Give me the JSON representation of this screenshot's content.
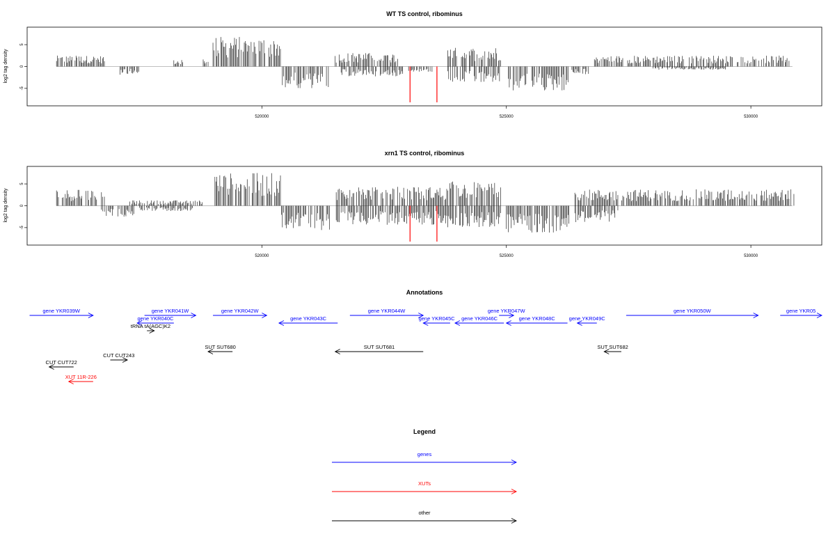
{
  "chart_data": [
    {
      "type": "bar",
      "title": "WT TS control, ribominus",
      "ylabel": "log2 tag density",
      "xlim": [
        515200,
        531450
      ],
      "ylim": [
        -9,
        9
      ],
      "x_ticks": [
        520000,
        525000,
        530000
      ],
      "y_ticks": [
        5,
        0,
        -5
      ],
      "segments": [
        {
          "x0": 515800,
          "x1": 516800,
          "sign": 1,
          "amp": 2.0
        },
        {
          "x0": 517100,
          "x1": 517500,
          "sign": -1,
          "amp": 1.5
        },
        {
          "x0": 518200,
          "x1": 518400,
          "sign": 1,
          "amp": 1.2
        },
        {
          "x0": 518800,
          "x1": 519000,
          "sign": 1,
          "amp": 1.5
        },
        {
          "x0": 519000,
          "x1": 520400,
          "sign": 1,
          "amp": 5.5
        },
        {
          "x0": 520400,
          "x1": 521400,
          "sign": -1,
          "amp": 4.0
        },
        {
          "x0": 521500,
          "x1": 522800,
          "sign": 1,
          "amp": 2.5
        },
        {
          "x0": 521600,
          "x1": 522900,
          "sign": -1,
          "amp": 1.8
        },
        {
          "x0": 523000,
          "x1": 523500,
          "sign": -1,
          "amp": 1.0
        },
        {
          "x0": 523800,
          "x1": 524900,
          "sign": 1,
          "amp": 3.5
        },
        {
          "x0": 523800,
          "x1": 524900,
          "sign": -1,
          "amp": 3.0
        },
        {
          "x0": 525000,
          "x1": 526300,
          "sign": -1,
          "amp": 4.5
        },
        {
          "x0": 526300,
          "x1": 526700,
          "sign": -1,
          "amp": 1.5
        },
        {
          "x0": 526800,
          "x1": 530800,
          "sign": 1,
          "amp": 2.0
        },
        {
          "x0": 528000,
          "x1": 529500,
          "sign": -1,
          "amp": 0.6
        }
      ],
      "highlights": [
        {
          "x": 523030,
          "y": -8.2,
          "color": "#ff0000"
        },
        {
          "x": 523580,
          "y": -8.2,
          "color": "#ff0000"
        }
      ]
    },
    {
      "type": "bar",
      "title": "xrn1 TS control, ribominus",
      "ylabel": "log2 tag density",
      "xlim": [
        515200,
        531450
      ],
      "ylim": [
        -9,
        9
      ],
      "x_ticks": [
        520000,
        525000,
        530000
      ],
      "y_ticks": [
        5,
        0,
        -5
      ],
      "segments": [
        {
          "x0": 515800,
          "x1": 516800,
          "sign": 1,
          "amp": 3.0
        },
        {
          "x0": 516700,
          "x1": 517400,
          "sign": -1,
          "amp": 2.0
        },
        {
          "x0": 517300,
          "x1": 518800,
          "sign": 1,
          "amp": 1.0
        },
        {
          "x0": 517500,
          "x1": 518600,
          "sign": -1,
          "amp": 1.0
        },
        {
          "x0": 519000,
          "x1": 520400,
          "sign": 1,
          "amp": 6.0
        },
        {
          "x0": 520400,
          "x1": 521400,
          "sign": -1,
          "amp": 4.5
        },
        {
          "x0": 521500,
          "x1": 523800,
          "sign": 1,
          "amp": 3.5
        },
        {
          "x0": 521500,
          "x1": 523800,
          "sign": -1,
          "amp": 3.5
        },
        {
          "x0": 523800,
          "x1": 524900,
          "sign": 1,
          "amp": 4.5
        },
        {
          "x0": 523800,
          "x1": 524900,
          "sign": -1,
          "amp": 4.0
        },
        {
          "x0": 525000,
          "x1": 526300,
          "sign": -1,
          "amp": 5.0
        },
        {
          "x0": 526400,
          "x1": 527300,
          "sign": -1,
          "amp": 3.0
        },
        {
          "x0": 526400,
          "x1": 530900,
          "sign": 1,
          "amp": 3.0
        }
      ],
      "highlights": [
        {
          "x": 523030,
          "y": -8.2,
          "color": "#ff0000"
        },
        {
          "x": 523580,
          "y": -8.2,
          "color": "#ff0000"
        }
      ]
    }
  ],
  "annotations": {
    "title": "Annotations",
    "features": [
      {
        "label": "gene YKR039W",
        "type": "genes",
        "start": 515250,
        "end": 516550,
        "row": 0,
        "strand": "+"
      },
      {
        "label": "gene YKR041W",
        "type": "genes",
        "start": 517600,
        "end": 518650,
        "row": 0,
        "strand": "+"
      },
      {
        "label": "gene YKR040C",
        "type": "genes",
        "start": 517450,
        "end": 518200,
        "row": 1,
        "strand": "-"
      },
      {
        "label": "tRNA tA(AGC)K2",
        "type": "other",
        "start": 517650,
        "end": 517800,
        "row": 2,
        "strand": "+"
      },
      {
        "label": "gene YKR042W",
        "type": "genes",
        "start": 519000,
        "end": 520100,
        "row": 0,
        "strand": "+"
      },
      {
        "label": "gene YKR043C",
        "type": "genes",
        "start": 520350,
        "end": 521550,
        "row": 1,
        "strand": "-"
      },
      {
        "label": "gene YKR044W",
        "type": "genes",
        "start": 521800,
        "end": 523300,
        "row": 0,
        "strand": "+"
      },
      {
        "label": "gene YKR045C",
        "type": "genes",
        "start": 523300,
        "end": 523850,
        "row": 1,
        "strand": "-"
      },
      {
        "label": "gene YKR046C",
        "type": "genes",
        "start": 523950,
        "end": 524950,
        "row": 1,
        "strand": "-"
      },
      {
        "label": "gene YKR047W",
        "type": "genes",
        "start": 524850,
        "end": 525150,
        "row": 0,
        "strand": "+"
      },
      {
        "label": "gene YKR048C",
        "type": "genes",
        "start": 525000,
        "end": 526250,
        "row": 1,
        "strand": "-"
      },
      {
        "label": "gene YKR049C",
        "type": "genes",
        "start": 526450,
        "end": 526850,
        "row": 1,
        "strand": "-"
      },
      {
        "label": "gene YKR050W",
        "type": "genes",
        "start": 527450,
        "end": 530150,
        "row": 0,
        "strand": "+"
      },
      {
        "label": "gene YKR05",
        "type": "genes",
        "start": 530600,
        "end": 531450,
        "row": 0,
        "strand": "+"
      },
      {
        "label": "SUT SUT680",
        "type": "other",
        "start": 518900,
        "end": 519400,
        "row": 3,
        "strand": "-"
      },
      {
        "label": "SUT SUT681",
        "type": "other",
        "start": 521500,
        "end": 523300,
        "row": 3,
        "strand": "-"
      },
      {
        "label": "SUT SUT682",
        "type": "other",
        "start": 527000,
        "end": 527350,
        "row": 3,
        "strand": "-"
      },
      {
        "label": "CUT CUT243",
        "type": "other",
        "start": 516900,
        "end": 517250,
        "row": 4,
        "strand": "+"
      },
      {
        "label": "CUT CUT722",
        "type": "other",
        "start": 515650,
        "end": 516150,
        "row": 5,
        "strand": "-"
      },
      {
        "label": "XUT 11R-226",
        "type": "XUTs",
        "start": 516050,
        "end": 516550,
        "row": 6,
        "strand": "-"
      }
    ]
  },
  "legend": {
    "title": "Legend",
    "items": [
      {
        "label": "genes",
        "color": "#0000ff"
      },
      {
        "label": "XUTs",
        "color": "#ff0000"
      },
      {
        "label": "other",
        "color": "#000000"
      }
    ]
  }
}
